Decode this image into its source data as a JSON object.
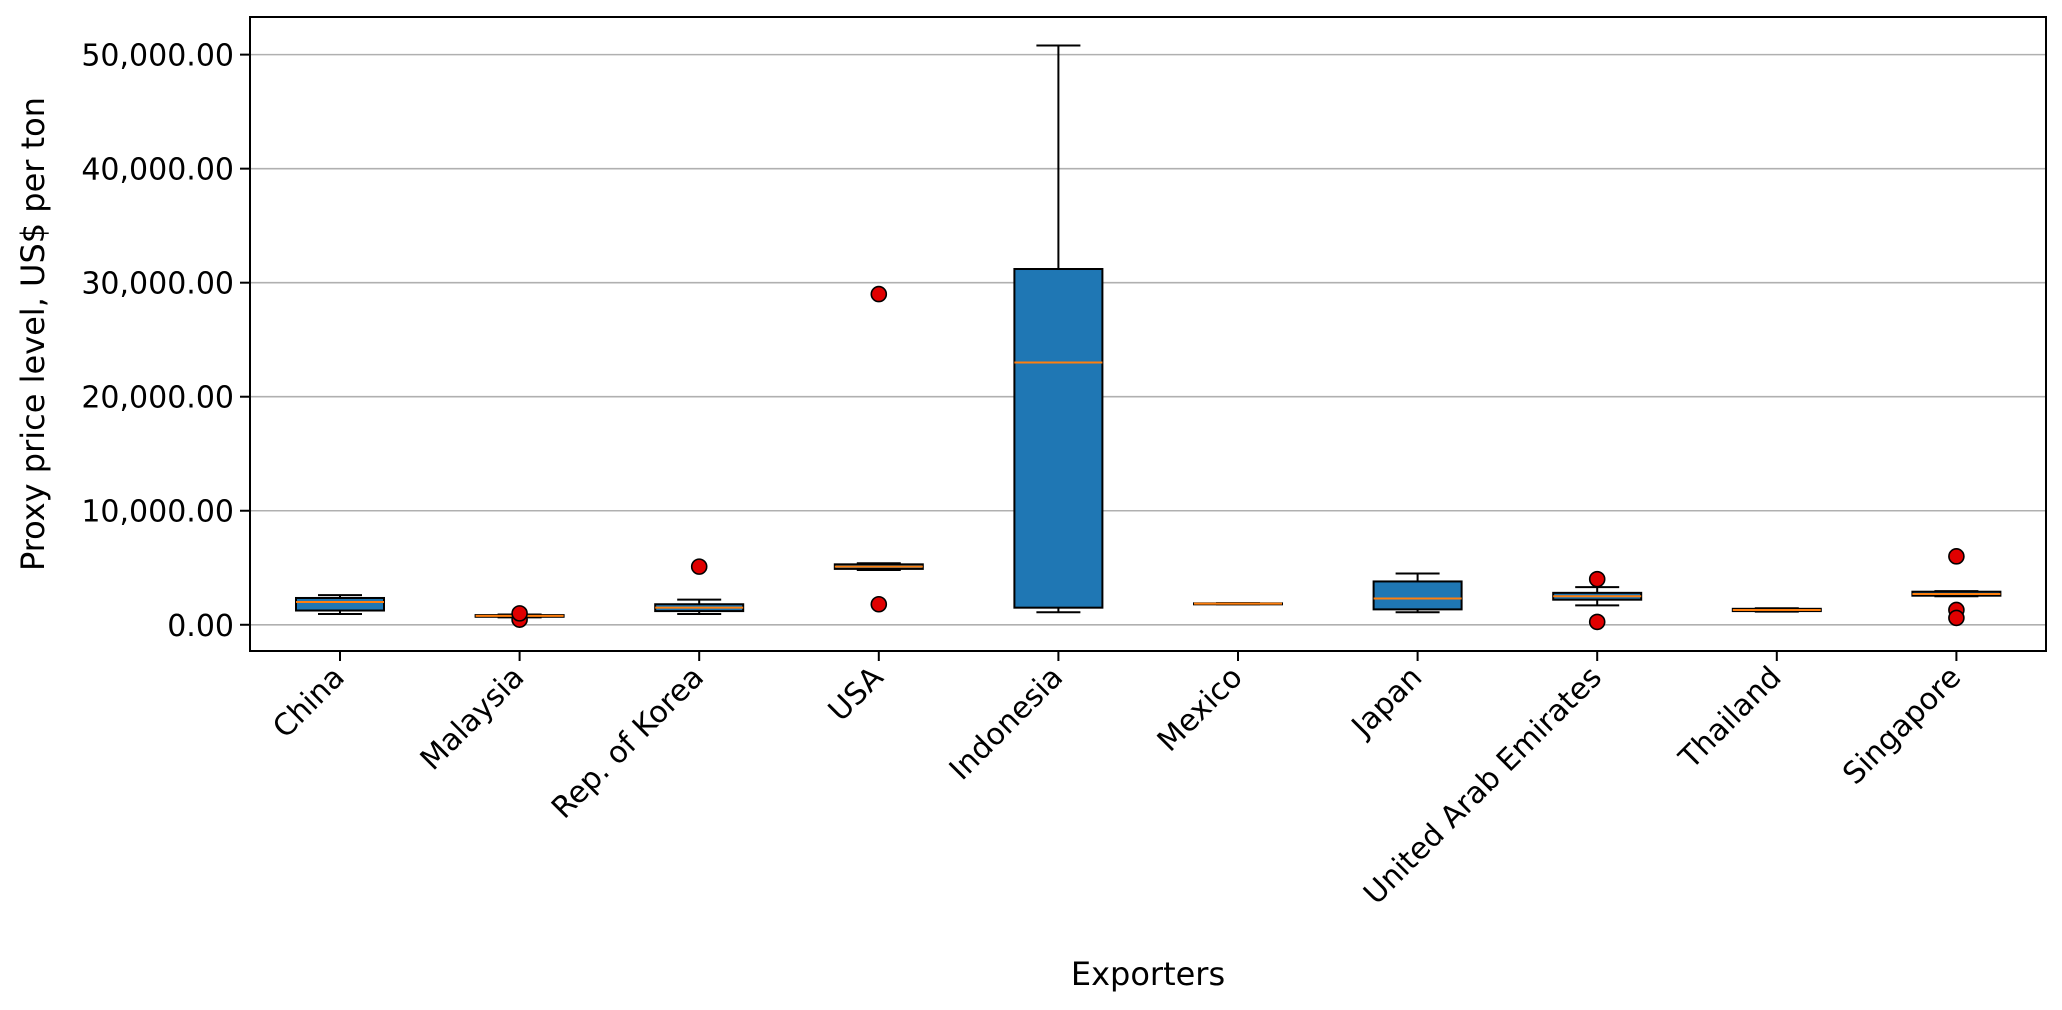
{
  "chart_data": {
    "type": "box",
    "title": "",
    "xlabel": "Exporters",
    "ylabel": "Proxy price level, US$ per ton",
    "ylim": [
      -2300,
      53300
    ],
    "yticks": [
      0,
      10000,
      20000,
      30000,
      40000,
      50000
    ],
    "ytick_labels": [
      "0.00",
      "10,000.00",
      "20,000.00",
      "30,000.00",
      "40,000.00",
      "50,000.00"
    ],
    "grid": "y",
    "box_color": "#1f77b4",
    "median_color": "#ff7f0e",
    "outlier_color": "#e00000",
    "categories": [
      "China",
      "Malaysia",
      "Rep. of Korea",
      "USA",
      "Indonesia",
      "Mexico",
      "Japan",
      "United Arab Emirates",
      "Thailand",
      "Singapore"
    ],
    "boxes": [
      {
        "category": "China",
        "whisker_low": 950,
        "q1": 1250,
        "median": 2000,
        "q3": 2350,
        "whisker_high": 2600,
        "outliers": []
      },
      {
        "category": "Malaysia",
        "whisker_low": 650,
        "q1": 700,
        "median": 780,
        "q3": 850,
        "whisker_high": 900,
        "outliers": [
          450,
          1000
        ]
      },
      {
        "category": "Rep. of Korea",
        "whisker_low": 950,
        "q1": 1200,
        "median": 1500,
        "q3": 1800,
        "whisker_high": 2200,
        "outliers": [
          5100
        ]
      },
      {
        "category": "USA",
        "whisker_low": 4800,
        "q1": 4900,
        "median": 5100,
        "q3": 5300,
        "whisker_high": 5400,
        "outliers": [
          29000,
          1800
        ]
      },
      {
        "category": "Indonesia",
        "whisker_low": 1100,
        "q1": 1500,
        "median": 23000,
        "q3": 31200,
        "whisker_high": 50800,
        "outliers": []
      },
      {
        "category": "Mexico",
        "whisker_low": 1800,
        "q1": 1820,
        "median": 1850,
        "q3": 1880,
        "whisker_high": 1900,
        "outliers": []
      },
      {
        "category": "Japan",
        "whisker_low": 1100,
        "q1": 1350,
        "median": 2300,
        "q3": 3800,
        "whisker_high": 4500,
        "outliers": []
      },
      {
        "category": "United Arab Emirates",
        "whisker_low": 1700,
        "q1": 2200,
        "median": 2500,
        "q3": 2800,
        "whisker_high": 3300,
        "outliers": [
          4000,
          250
        ]
      },
      {
        "category": "Thailand",
        "whisker_low": 1150,
        "q1": 1200,
        "median": 1300,
        "q3": 1400,
        "whisker_high": 1450,
        "outliers": []
      },
      {
        "category": "Singapore",
        "whisker_low": 2500,
        "q1": 2550,
        "median": 2700,
        "q3": 2900,
        "whisker_high": 2950,
        "outliers": [
          6000,
          1300,
          600
        ]
      }
    ]
  }
}
